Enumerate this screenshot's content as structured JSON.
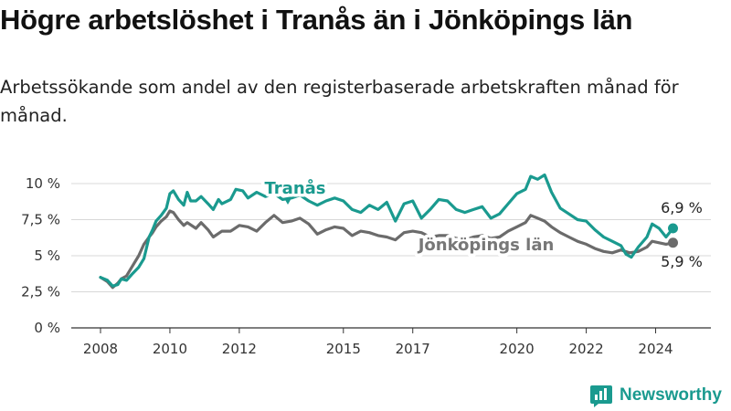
{
  "title": "Högre arbetslöshet i Tranås än i Jönköpings län",
  "subtitle": "Arbetssökande som andel av den registerbaserade arbetskraften månad för månad.",
  "brand": {
    "name": "Newsworthy"
  },
  "colors": {
    "accent": "#1a9a8f",
    "secondary": "#6b6b6b",
    "grid": "#d8d8d8"
  },
  "chart_data": {
    "type": "line",
    "title": "Högre arbetslöshet i Tranås än i Jönköpings län",
    "xlabel": "",
    "ylabel": "",
    "xlim": [
      2008,
      2024.75
    ],
    "ylim": [
      0,
      10
    ],
    "yticks": [
      0,
      2.5,
      5,
      7.5,
      10
    ],
    "ytick_labels": [
      "0 %",
      "2,5 %",
      "5 %",
      "7,5 %",
      "10 %"
    ],
    "xticks": [
      2008,
      2010,
      2012,
      2015,
      2017,
      2020,
      2022,
      2024
    ],
    "xtick_labels": [
      "2008",
      "2010",
      "2012",
      "2015",
      "2017",
      "2020",
      "2022",
      "2024"
    ],
    "grid": true,
    "series": [
      {
        "name": "Tranås",
        "color": "#1a9a8f",
        "end_label": "6,9 %",
        "points": [
          [
            2008.0,
            3.5
          ],
          [
            2008.2,
            3.3
          ],
          [
            2008.35,
            2.9
          ],
          [
            2008.5,
            3.0
          ],
          [
            2008.6,
            3.4
          ],
          [
            2008.75,
            3.3
          ],
          [
            2008.9,
            3.7
          ],
          [
            2009.1,
            4.2
          ],
          [
            2009.25,
            4.8
          ],
          [
            2009.4,
            6.3
          ],
          [
            2009.5,
            6.8
          ],
          [
            2009.6,
            7.4
          ],
          [
            2009.75,
            7.8
          ],
          [
            2009.9,
            8.3
          ],
          [
            2010.0,
            9.3
          ],
          [
            2010.1,
            9.5
          ],
          [
            2010.25,
            8.9
          ],
          [
            2010.4,
            8.5
          ],
          [
            2010.5,
            9.4
          ],
          [
            2010.6,
            8.8
          ],
          [
            2010.75,
            8.8
          ],
          [
            2010.9,
            9.1
          ],
          [
            2011.1,
            8.6
          ],
          [
            2011.25,
            8.2
          ],
          [
            2011.4,
            8.9
          ],
          [
            2011.5,
            8.6
          ],
          [
            2011.75,
            8.9
          ],
          [
            2011.9,
            9.6
          ],
          [
            2012.1,
            9.5
          ],
          [
            2012.25,
            9.0
          ],
          [
            2012.5,
            9.4
          ],
          [
            2012.75,
            9.1
          ],
          [
            2013.0,
            9.3
          ],
          [
            2013.25,
            8.9
          ],
          [
            2013.5,
            9.0
          ],
          [
            2013.75,
            9.2
          ],
          [
            2014.0,
            8.8
          ],
          [
            2014.25,
            8.5
          ],
          [
            2014.5,
            8.8
          ],
          [
            2014.75,
            9.0
          ],
          [
            2015.0,
            8.8
          ],
          [
            2015.25,
            8.2
          ],
          [
            2015.5,
            8.0
          ],
          [
            2015.75,
            8.5
          ],
          [
            2016.0,
            8.2
          ],
          [
            2016.25,
            8.7
          ],
          [
            2016.5,
            7.4
          ],
          [
            2016.75,
            8.6
          ],
          [
            2017.0,
            8.8
          ],
          [
            2017.25,
            7.6
          ],
          [
            2017.5,
            8.2
          ],
          [
            2017.75,
            8.9
          ],
          [
            2018.0,
            8.8
          ],
          [
            2018.25,
            8.2
          ],
          [
            2018.5,
            8.0
          ],
          [
            2018.75,
            8.2
          ],
          [
            2019.0,
            8.4
          ],
          [
            2019.25,
            7.6
          ],
          [
            2019.5,
            7.9
          ],
          [
            2019.75,
            8.6
          ],
          [
            2020.0,
            9.3
          ],
          [
            2020.25,
            9.6
          ],
          [
            2020.4,
            10.5
          ],
          [
            2020.6,
            10.3
          ],
          [
            2020.8,
            10.6
          ],
          [
            2021.0,
            9.4
          ],
          [
            2021.25,
            8.3
          ],
          [
            2021.5,
            7.9
          ],
          [
            2021.75,
            7.5
          ],
          [
            2022.0,
            7.4
          ],
          [
            2022.25,
            6.8
          ],
          [
            2022.5,
            6.3
          ],
          [
            2022.75,
            6.0
          ],
          [
            2023.0,
            5.7
          ],
          [
            2023.15,
            5.1
          ],
          [
            2023.3,
            4.9
          ],
          [
            2023.5,
            5.6
          ],
          [
            2023.75,
            6.3
          ],
          [
            2023.9,
            7.2
          ],
          [
            2024.1,
            6.9
          ],
          [
            2024.3,
            6.3
          ],
          [
            2024.5,
            6.9
          ]
        ]
      },
      {
        "name": "Jönköpings län",
        "color": "#6b6b6b",
        "end_label": "5,9 %",
        "points": [
          [
            2008.0,
            3.5
          ],
          [
            2008.2,
            3.2
          ],
          [
            2008.35,
            2.8
          ],
          [
            2008.5,
            3.1
          ],
          [
            2008.6,
            3.4
          ],
          [
            2008.75,
            3.6
          ],
          [
            2008.9,
            4.2
          ],
          [
            2009.1,
            5.0
          ],
          [
            2009.25,
            5.8
          ],
          [
            2009.4,
            6.3
          ],
          [
            2009.5,
            6.6
          ],
          [
            2009.6,
            7.0
          ],
          [
            2009.75,
            7.4
          ],
          [
            2009.9,
            7.7
          ],
          [
            2010.0,
            8.1
          ],
          [
            2010.1,
            8.0
          ],
          [
            2010.25,
            7.5
          ],
          [
            2010.4,
            7.1
          ],
          [
            2010.5,
            7.3
          ],
          [
            2010.75,
            6.9
          ],
          [
            2010.9,
            7.3
          ],
          [
            2011.1,
            6.8
          ],
          [
            2011.25,
            6.3
          ],
          [
            2011.5,
            6.7
          ],
          [
            2011.75,
            6.7
          ],
          [
            2012.0,
            7.1
          ],
          [
            2012.25,
            7.0
          ],
          [
            2012.5,
            6.7
          ],
          [
            2012.75,
            7.3
          ],
          [
            2013.0,
            7.8
          ],
          [
            2013.25,
            7.3
          ],
          [
            2013.5,
            7.4
          ],
          [
            2013.75,
            7.6
          ],
          [
            2014.0,
            7.2
          ],
          [
            2014.25,
            6.5
          ],
          [
            2014.5,
            6.8
          ],
          [
            2014.75,
            7.0
          ],
          [
            2015.0,
            6.9
          ],
          [
            2015.25,
            6.4
          ],
          [
            2015.5,
            6.7
          ],
          [
            2015.75,
            6.6
          ],
          [
            2016.0,
            6.4
          ],
          [
            2016.25,
            6.3
          ],
          [
            2016.5,
            6.1
          ],
          [
            2016.75,
            6.6
          ],
          [
            2017.0,
            6.7
          ],
          [
            2017.25,
            6.6
          ],
          [
            2017.5,
            6.3
          ],
          [
            2017.75,
            6.4
          ],
          [
            2018.0,
            6.4
          ],
          [
            2018.25,
            6.2
          ],
          [
            2018.5,
            6.1
          ],
          [
            2018.75,
            6.3
          ],
          [
            2019.0,
            6.4
          ],
          [
            2019.25,
            6.2
          ],
          [
            2019.5,
            6.3
          ],
          [
            2019.75,
            6.7
          ],
          [
            2020.0,
            7.0
          ],
          [
            2020.25,
            7.3
          ],
          [
            2020.4,
            7.8
          ],
          [
            2020.6,
            7.6
          ],
          [
            2020.8,
            7.4
          ],
          [
            2021.0,
            7.0
          ],
          [
            2021.25,
            6.6
          ],
          [
            2021.5,
            6.3
          ],
          [
            2021.75,
            6.0
          ],
          [
            2022.0,
            5.8
          ],
          [
            2022.25,
            5.5
          ],
          [
            2022.5,
            5.3
          ],
          [
            2022.75,
            5.2
          ],
          [
            2023.0,
            5.4
          ],
          [
            2023.25,
            5.2
          ],
          [
            2023.5,
            5.3
          ],
          [
            2023.75,
            5.6
          ],
          [
            2023.9,
            6.0
          ],
          [
            2024.1,
            5.9
          ],
          [
            2024.3,
            5.8
          ],
          [
            2024.5,
            5.9
          ]
        ]
      }
    ],
    "annotations": [
      {
        "text": "Tranås",
        "series": "Tranås"
      },
      {
        "text": "Jönköpings län",
        "series": "Jönköpings län"
      }
    ]
  }
}
